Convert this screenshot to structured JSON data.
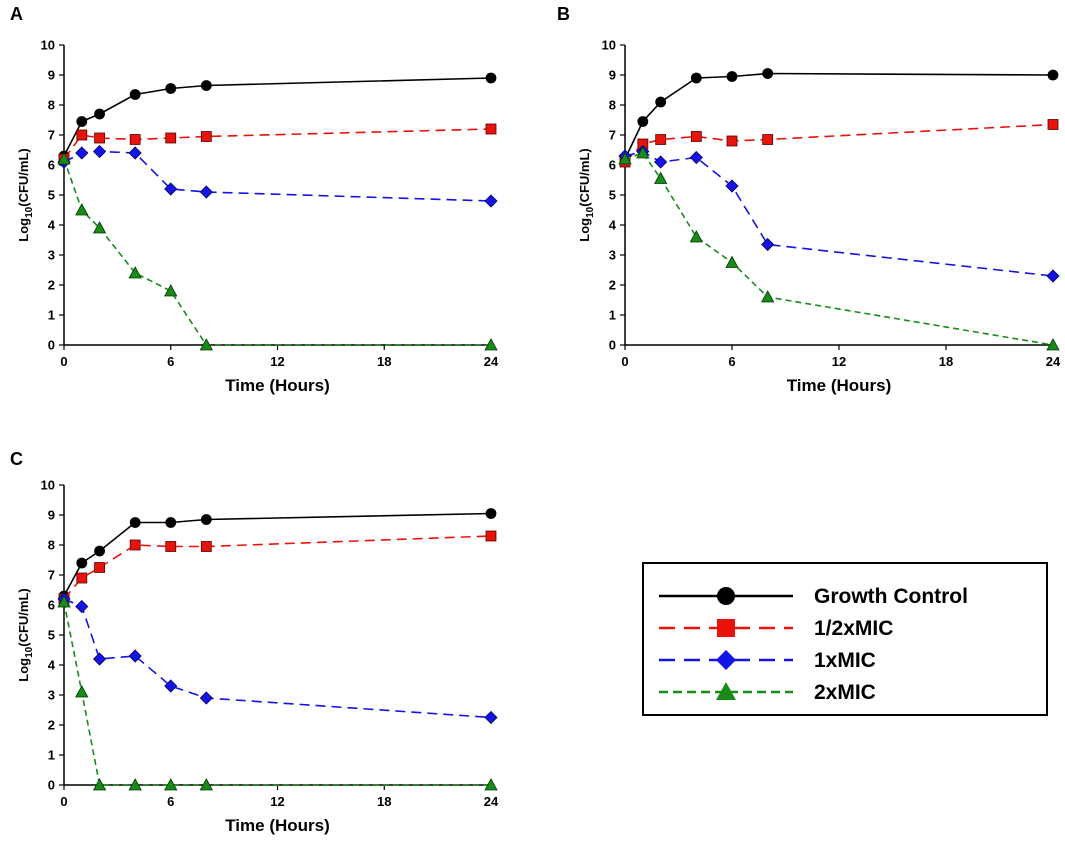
{
  "series_styles": [
    {
      "name": "Growth Control",
      "color": "#000000",
      "dash": "",
      "marker": "circle"
    },
    {
      "name": "1/2xMIC",
      "color": "#e8140c",
      "dash": "10,6",
      "marker": "square"
    },
    {
      "name": "1xMIC",
      "color": "#1414e6",
      "dash": "10,6",
      "marker": "diamond"
    },
    {
      "name": "2xMIC",
      "color": "#1a8a1a",
      "dash": "6,4",
      "marker": "triangle"
    }
  ],
  "chart_data": [
    {
      "type": "line",
      "panel": "A",
      "xlabel": "Time (Hours)",
      "ylabel_main": "Log",
      "ylabel_sub": "10",
      "ylabel_rest": "(CFU/mL)",
      "xlim": [
        0,
        24
      ],
      "ylim": [
        0,
        10
      ],
      "xticks": [
        0,
        6,
        12,
        18,
        24
      ],
      "yticks": [
        0,
        1,
        2,
        3,
        4,
        5,
        6,
        7,
        8,
        9,
        10
      ],
      "series": [
        {
          "name": "Growth Control",
          "x": [
            0,
            1,
            2,
            4,
            6,
            8,
            24
          ],
          "y": [
            6.3,
            7.45,
            7.7,
            8.35,
            8.55,
            8.65,
            8.9
          ]
        },
        {
          "name": "1/2xMIC",
          "x": [
            0,
            1,
            2,
            4,
            6,
            8,
            24
          ],
          "y": [
            6.2,
            7.0,
            6.9,
            6.85,
            6.9,
            6.95,
            7.2
          ]
        },
        {
          "name": "1xMIC",
          "x": [
            0,
            1,
            2,
            4,
            6,
            8,
            24
          ],
          "y": [
            6.1,
            6.4,
            6.45,
            6.4,
            5.2,
            5.1,
            4.8
          ]
        },
        {
          "name": "2xMIC",
          "x": [
            0,
            1,
            2,
            4,
            6,
            8,
            24
          ],
          "y": [
            6.2,
            4.5,
            3.9,
            2.4,
            1.8,
            0,
            0
          ]
        }
      ]
    },
    {
      "type": "line",
      "panel": "B",
      "xlabel": "Time (Hours)",
      "ylabel_main": "Log",
      "ylabel_sub": "10",
      "ylabel_rest": "(CFU/mL)",
      "xlim": [
        0,
        24
      ],
      "ylim": [
        0,
        10
      ],
      "xticks": [
        0,
        6,
        12,
        18,
        24
      ],
      "yticks": [
        0,
        1,
        2,
        3,
        4,
        5,
        6,
        7,
        8,
        9,
        10
      ],
      "series": [
        {
          "name": "Growth Control",
          "x": [
            0,
            1,
            2,
            4,
            6,
            8,
            24
          ],
          "y": [
            6.2,
            7.45,
            8.1,
            8.9,
            8.95,
            9.05,
            9.0
          ]
        },
        {
          "name": "1/2xMIC",
          "x": [
            0,
            1,
            2,
            4,
            6,
            8,
            24
          ],
          "y": [
            6.1,
            6.7,
            6.85,
            6.95,
            6.8,
            6.85,
            7.35
          ]
        },
        {
          "name": "1xMIC",
          "x": [
            0,
            1,
            2,
            4,
            6,
            8,
            24
          ],
          "y": [
            6.3,
            6.45,
            6.1,
            6.25,
            5.3,
            3.35,
            2.3
          ]
        },
        {
          "name": "2xMIC",
          "x": [
            0,
            1,
            2,
            4,
            6,
            8,
            24
          ],
          "y": [
            6.2,
            6.4,
            5.55,
            3.6,
            2.75,
            1.6,
            0
          ]
        }
      ]
    },
    {
      "type": "line",
      "panel": "C",
      "xlabel": "Time (Hours)",
      "ylabel_main": "Log",
      "ylabel_sub": "10",
      "ylabel_rest": "(CFU/mL)",
      "xlim": [
        0,
        24
      ],
      "ylim": [
        0,
        10
      ],
      "xticks": [
        0,
        6,
        12,
        18,
        24
      ],
      "yticks": [
        0,
        1,
        2,
        3,
        4,
        5,
        6,
        7,
        8,
        9,
        10
      ],
      "series": [
        {
          "name": "Growth Control",
          "x": [
            0,
            1,
            2,
            4,
            6,
            8,
            24
          ],
          "y": [
            6.3,
            7.4,
            7.8,
            8.75,
            8.75,
            8.85,
            9.05
          ]
        },
        {
          "name": "1/2xMIC",
          "x": [
            0,
            1,
            2,
            4,
            6,
            8,
            24
          ],
          "y": [
            6.2,
            6.9,
            7.25,
            8.0,
            7.95,
            7.95,
            8.3
          ]
        },
        {
          "name": "1xMIC",
          "x": [
            0,
            1,
            2,
            4,
            6,
            8,
            24
          ],
          "y": [
            6.2,
            5.95,
            4.2,
            4.3,
            3.3,
            2.9,
            2.25
          ]
        },
        {
          "name": "2xMIC",
          "x": [
            0,
            1,
            2,
            4,
            6,
            8,
            24
          ],
          "y": [
            6.1,
            3.1,
            0,
            0,
            0,
            0,
            0
          ]
        }
      ]
    }
  ],
  "legend": {
    "entries": [
      "Growth Control",
      "1/2xMIC",
      "1xMIC",
      "2xMIC"
    ]
  }
}
